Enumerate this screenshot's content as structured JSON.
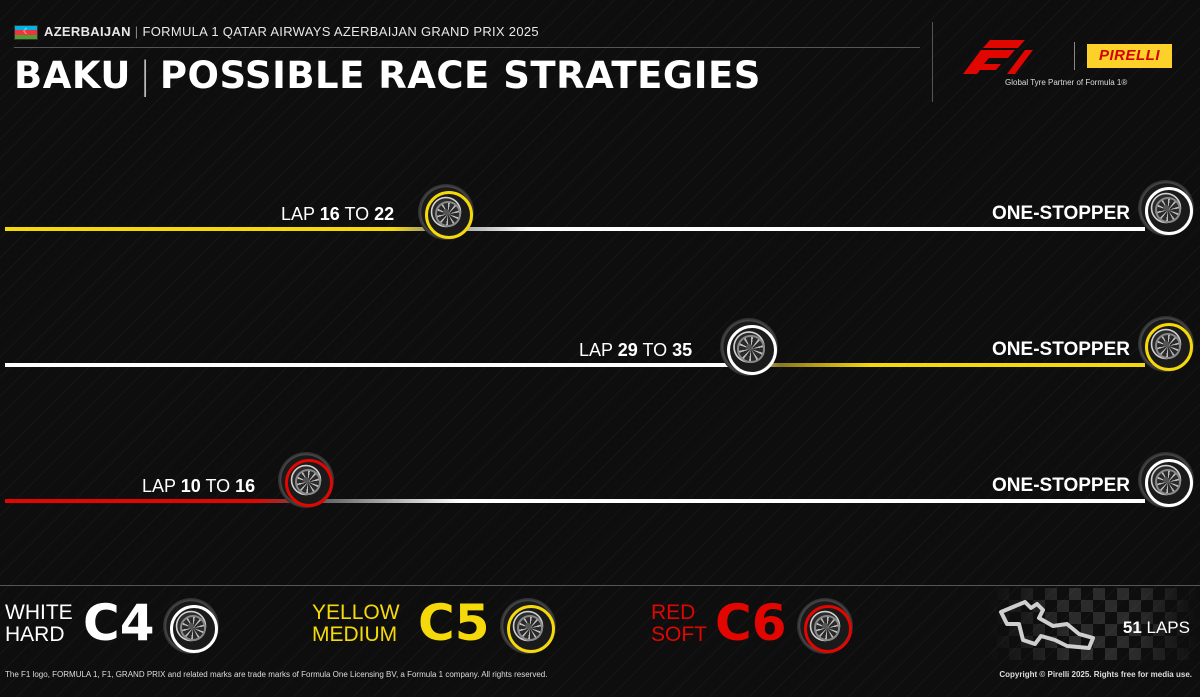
{
  "header": {
    "country": "AZERBAIJAN",
    "event": "FORMULA 1 QATAR AIRWAYS AZERBAIJAN GRAND PRIX 2025",
    "title_location": "BAKU",
    "title_main": "POSSIBLE RACE STRATEGIES",
    "partner_text": "Global Tyre Partner of Formula 1®",
    "f1_logo_icon": "f1-logo",
    "pirelli_logo": "PIRELLI"
  },
  "strategies": [
    {
      "lap_prefix": "LAP",
      "lap_start": "16",
      "lap_joiner": "TO",
      "lap_end": "22",
      "label": "ONE-STOPPER",
      "first_compound": "medium",
      "second_compound": "hard",
      "first_color": "#f5d90a",
      "second_color": "#ffffff"
    },
    {
      "lap_prefix": "LAP",
      "lap_start": "29",
      "lap_joiner": "TO",
      "lap_end": "35",
      "label": "ONE-STOPPER",
      "first_compound": "hard",
      "second_compound": "medium",
      "first_color": "#ffffff",
      "second_color": "#f5d90a"
    },
    {
      "lap_prefix": "LAP",
      "lap_start": "10",
      "lap_joiner": "TO",
      "lap_end": "16",
      "label": "ONE-STOPPER",
      "first_compound": "soft",
      "second_compound": "hard",
      "first_color": "#e10600",
      "second_color": "#ffffff"
    }
  ],
  "compounds": [
    {
      "line1": "WHITE",
      "line2": "HARD",
      "code": "C4",
      "color": "#ffffff"
    },
    {
      "line1": "YELLOW",
      "line2": "MEDIUM",
      "code": "C5",
      "color": "#f5d90a"
    },
    {
      "line1": "RED",
      "line2": "SOFT",
      "code": "C6",
      "color": "#e10600"
    }
  ],
  "race": {
    "laps_number": "51",
    "laps_label": "LAPS",
    "circuit_icon": "baku-circuit-map-icon"
  },
  "footer": {
    "trademark": "The F1 logo, FORMULA 1, F1, GRAND PRIX and related marks are trade marks of Formula One Licensing BV, a Formula 1 company. All rights reserved.",
    "copyright": "Copyright © Pirelli 2025. Rights free for media use."
  }
}
